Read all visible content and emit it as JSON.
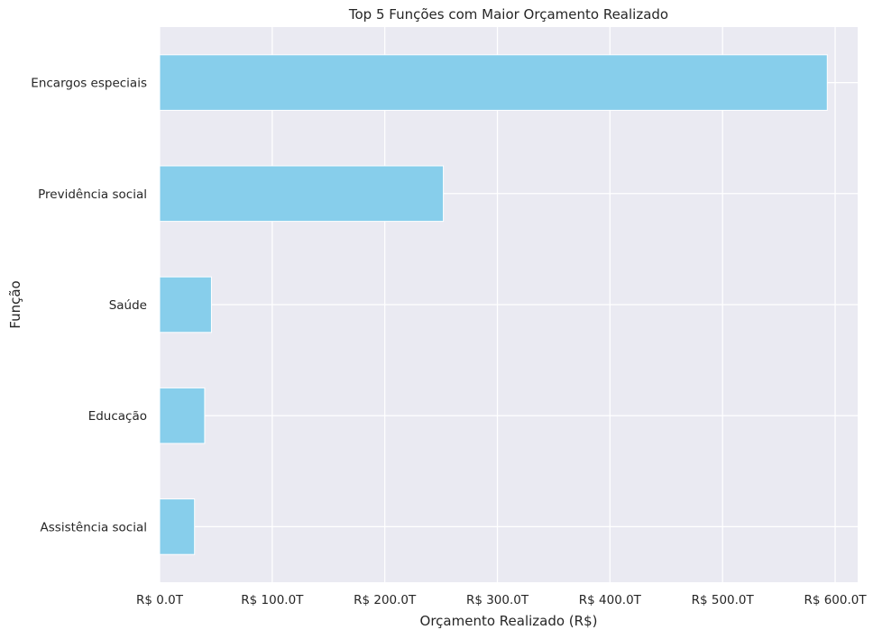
{
  "chart_data": {
    "type": "bar",
    "orientation": "horizontal",
    "title": "Top 5 Funções com Maior Orçamento Realizado",
    "xlabel": "Orçamento Realizado (R$)",
    "ylabel": "Função",
    "categories": [
      "Encargos especiais",
      "Previdência social",
      "Saúde",
      "Educação",
      "Assistência social"
    ],
    "values": [
      593,
      252,
      46,
      40,
      31
    ],
    "value_unit": "R$ trillions",
    "xlim": [
      0,
      620
    ],
    "xticks": [
      0,
      100,
      200,
      300,
      400,
      500,
      600
    ],
    "xtick_labels": [
      "R$ 0.0T",
      "R$ 100.0T",
      "R$ 200.0T",
      "R$ 300.0T",
      "R$ 400.0T",
      "R$ 500.0T",
      "R$ 600.0T"
    ],
    "grid": true,
    "colors": {
      "bar": "#87ceeb",
      "plot_background": "#eaeaf2",
      "grid": "#ffffff",
      "text": "#262626"
    }
  }
}
